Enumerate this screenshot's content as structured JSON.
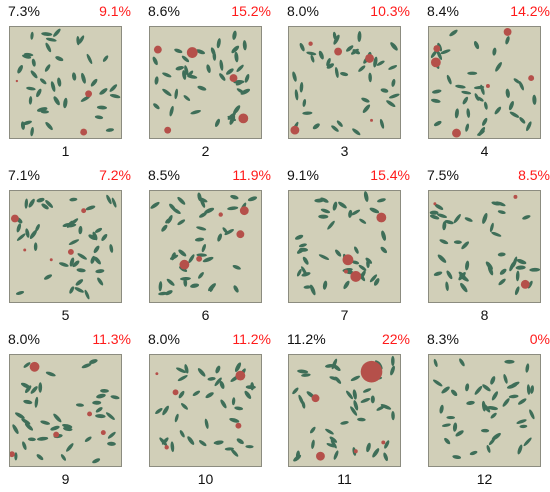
{
  "colors": {
    "background": "#d1cfb8",
    "ellipse": "#3e6e58",
    "circle": "#b5504a",
    "red_text": "#ff1a1a"
  },
  "panels": [
    {
      "label": "1",
      "left_pct": "7.3%",
      "right_pct": "9.1%"
    },
    {
      "label": "2",
      "left_pct": "8.6%",
      "right_pct": "15.2%"
    },
    {
      "label": "3",
      "left_pct": "8.0%",
      "right_pct": "10.3%"
    },
    {
      "label": "4",
      "left_pct": "8.4%",
      "right_pct": "14.2%"
    },
    {
      "label": "5",
      "left_pct": "7.1%",
      "right_pct": "7.2%"
    },
    {
      "label": "6",
      "left_pct": "8.5%",
      "right_pct": "11.9%"
    },
    {
      "label": "7",
      "left_pct": "9.1%",
      "right_pct": "15.4%"
    },
    {
      "label": "8",
      "left_pct": "7.5%",
      "right_pct": "8.5%"
    },
    {
      "label": "9",
      "left_pct": "8.0%",
      "right_pct": "11.3%"
    },
    {
      "label": "10",
      "left_pct": "8.0%",
      "right_pct": "11.2%"
    },
    {
      "label": "11",
      "left_pct": "11.2%",
      "right_pct": "22%"
    },
    {
      "label": "12",
      "left_pct": "8.3%",
      "right_pct": "0%"
    }
  ]
}
